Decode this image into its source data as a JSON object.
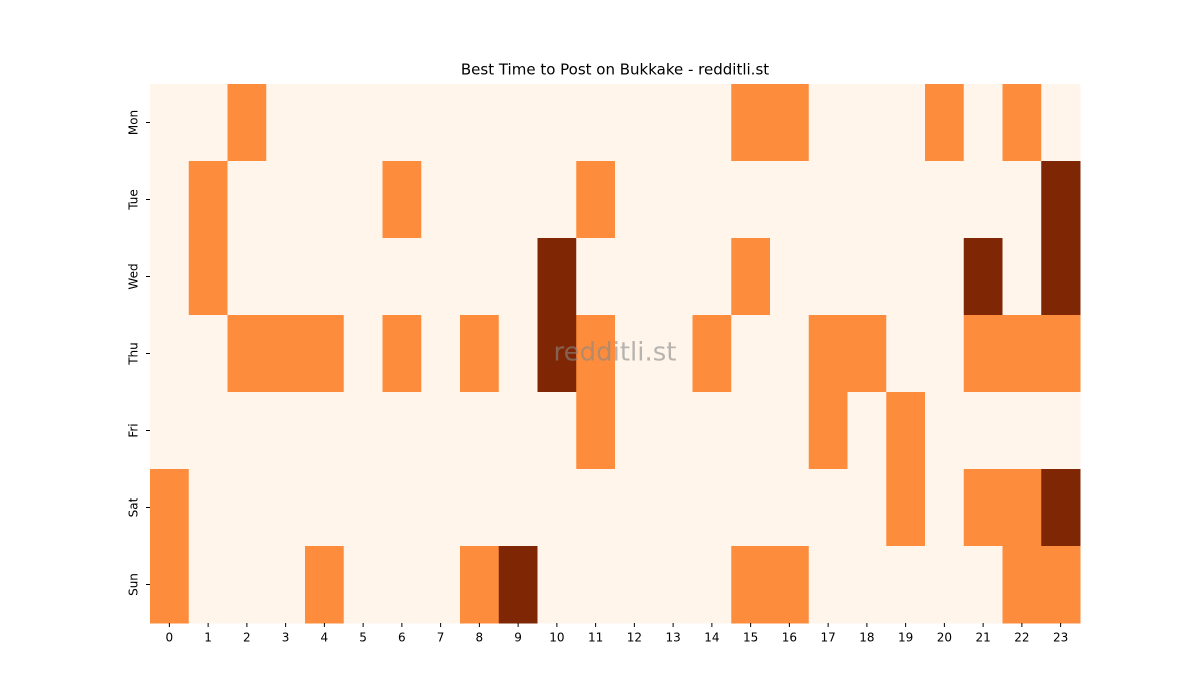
{
  "chart_data": {
    "type": "heatmap",
    "title": "Best Time to Post on Bukkake - redditli.st",
    "watermark": "redditli.st",
    "x_categories": [
      "0",
      "1",
      "2",
      "3",
      "4",
      "5",
      "6",
      "7",
      "8",
      "9",
      "10",
      "11",
      "12",
      "13",
      "14",
      "15",
      "16",
      "17",
      "18",
      "19",
      "20",
      "21",
      "22",
      "23"
    ],
    "y_categories": [
      "Mon",
      "Tue",
      "Wed",
      "Thu",
      "Fri",
      "Sat",
      "Sun"
    ],
    "values": [
      [
        0,
        0,
        1,
        0,
        0,
        0,
        0,
        0,
        0,
        0,
        0,
        0,
        0,
        0,
        0,
        1,
        1,
        0,
        0,
        0,
        1,
        0,
        1,
        0
      ],
      [
        0,
        1,
        0,
        0,
        0,
        0,
        1,
        0,
        0,
        0,
        0,
        1,
        0,
        0,
        0,
        0,
        0,
        0,
        0,
        0,
        0,
        0,
        0,
        2
      ],
      [
        0,
        1,
        0,
        0,
        0,
        0,
        0,
        0,
        0,
        0,
        2,
        0,
        0,
        0,
        0,
        1,
        0,
        0,
        0,
        0,
        0,
        2,
        0,
        2
      ],
      [
        0,
        0,
        1,
        1,
        1,
        0,
        1,
        0,
        1,
        0,
        2,
        1,
        0,
        0,
        1,
        0,
        0,
        1,
        1,
        0,
        0,
        1,
        1,
        1
      ],
      [
        0,
        0,
        0,
        0,
        0,
        0,
        0,
        0,
        0,
        0,
        0,
        1,
        0,
        0,
        0,
        0,
        0,
        1,
        0,
        1,
        0,
        0,
        0,
        0
      ],
      [
        1,
        0,
        0,
        0,
        0,
        0,
        0,
        0,
        0,
        0,
        0,
        0,
        0,
        0,
        0,
        0,
        0,
        0,
        0,
        1,
        0,
        1,
        1,
        2
      ],
      [
        1,
        0,
        0,
        0,
        1,
        0,
        0,
        0,
        1,
        2,
        0,
        0,
        0,
        0,
        0,
        1,
        1,
        0,
        0,
        0,
        0,
        0,
        1,
        1
      ]
    ],
    "color_scale": {
      "min": 0,
      "max": 2,
      "colors": [
        "#fff5eb",
        "#fd8d3c",
        "#7f2704"
      ]
    }
  }
}
